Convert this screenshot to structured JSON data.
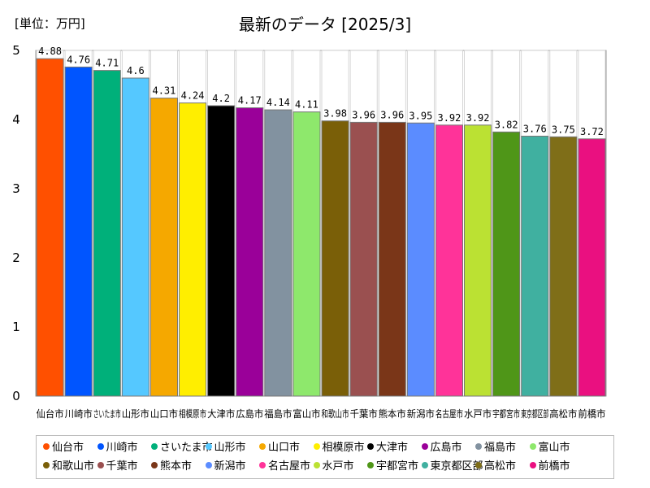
{
  "unit_label": "[単位：万円]",
  "chart_data": {
    "type": "bar",
    "title": "最新のデータ [2025/3]",
    "categories": [
      "仙台市",
      "川崎市",
      "さいたま市",
      "山形市",
      "山口市",
      "相模原市",
      "大津市",
      "広島市",
      "福島市",
      "富山市",
      "和歌山市",
      "千葉市",
      "熊本市",
      "新潟市",
      "名古屋市",
      "水戸市",
      "宇都宮市",
      "東京都区部",
      "高松市",
      "前橋市"
    ],
    "values": [
      4.88,
      4.76,
      4.71,
      4.6,
      4.31,
      4.24,
      4.2,
      4.17,
      4.14,
      4.11,
      3.98,
      3.96,
      3.96,
      3.95,
      3.92,
      3.92,
      3.82,
      3.76,
      3.75,
      3.72
    ],
    "value_labels": [
      "4.88",
      "4.76",
      "4.71",
      "4.6",
      "4.31",
      "4.24",
      "4.2",
      "4.17",
      "4.14",
      "4.11",
      "3.98",
      "3.96",
      "3.96",
      "3.95",
      "3.92",
      "3.92",
      "3.82",
      "3.76",
      "3.75",
      "3.72"
    ],
    "colors": [
      "#ff5000",
      "#0055ff",
      "#00b07a",
      "#55c8ff",
      "#f5a800",
      "#ffee00",
      "#000000",
      "#9a0099",
      "#8292a0",
      "#8ee86c",
      "#7a5f08",
      "#9a5050",
      "#7a3618",
      "#5b8cff",
      "#ff3399",
      "#bbe133",
      "#4f9618",
      "#40b0a0",
      "#7f6e18",
      "#ea1080"
    ],
    "ylim": [
      0,
      5
    ],
    "yticks": [
      "0",
      "1",
      "2",
      "3",
      "4",
      "5"
    ],
    "legend_position": "bottom"
  }
}
